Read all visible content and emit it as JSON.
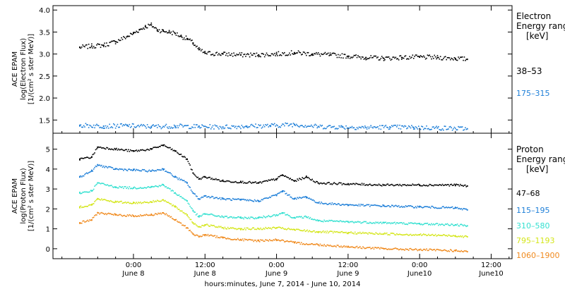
{
  "chart_data": [
    {
      "type": "scatter",
      "panel": "electron",
      "ylabel_lines": [
        "ACE EPAM",
        "log(Electron Flux)",
        "[1/(cm² s ster MeV)]"
      ],
      "ylim": [
        1.2,
        4.1
      ],
      "yticks": [
        "1.5",
        "2.0",
        "2.5",
        "3.0",
        "3.5",
        "4.0"
      ],
      "legend": {
        "title": [
          "Electron",
          "Energy ranges"
        ],
        "unit": "[keV]",
        "placement": "right",
        "entries": [
          "38–53",
          "175–315"
        ]
      },
      "series": [
        {
          "name": "38–53",
          "color": "#000000",
          "points": [
            [
              -9,
              3.15
            ],
            [
              -7,
              3.18
            ],
            [
              -5,
              3.2
            ],
            [
              -3,
              3.28
            ],
            [
              -1,
              3.4
            ],
            [
              0,
              3.47
            ],
            [
              1,
              3.55
            ],
            [
              2,
              3.62
            ],
            [
              3,
              3.66
            ],
            [
              4,
              3.55
            ],
            [
              5,
              3.52
            ],
            [
              6,
              3.5
            ],
            [
              7,
              3.47
            ],
            [
              8,
              3.4
            ],
            [
              9,
              3.35
            ],
            [
              10,
              3.25
            ],
            [
              11,
              3.1
            ],
            [
              12,
              3.02
            ],
            [
              15,
              3.0
            ],
            [
              18,
              2.98
            ],
            [
              21,
              2.98
            ],
            [
              24,
              3.0
            ],
            [
              27,
              3.03
            ],
            [
              30,
              3.0
            ],
            [
              33,
              2.98
            ],
            [
              36,
              2.95
            ],
            [
              39,
              2.92
            ],
            [
              42,
              2.9
            ],
            [
              45,
              2.92
            ],
            [
              48,
              2.93
            ],
            [
              51,
              2.92
            ],
            [
              54,
              2.9
            ],
            [
              56,
              2.88
            ]
          ]
        },
        {
          "name": "175–315",
          "color": "#1e7fd8",
          "points": [
            [
              -9,
              1.38
            ],
            [
              -5,
              1.36
            ],
            [
              -1,
              1.37
            ],
            [
              3,
              1.35
            ],
            [
              7,
              1.36
            ],
            [
              11,
              1.35
            ],
            [
              15,
              1.34
            ],
            [
              19,
              1.36
            ],
            [
              23,
              1.37
            ],
            [
              27,
              1.4
            ],
            [
              31,
              1.35
            ],
            [
              35,
              1.34
            ],
            [
              39,
              1.33
            ],
            [
              43,
              1.34
            ],
            [
              47,
              1.33
            ],
            [
              51,
              1.32
            ],
            [
              56,
              1.3
            ]
          ]
        }
      ]
    },
    {
      "type": "scatter",
      "panel": "proton",
      "ylabel_lines": [
        "ACE EPAM",
        "log(Proton Flux)",
        "[1/(cm² s ster MeV)]"
      ],
      "ylim": [
        -0.5,
        5.8
      ],
      "yticks": [
        "0",
        "1",
        "2",
        "3",
        "4",
        "5"
      ],
      "legend": {
        "title": [
          "Proton",
          "Energy ranges"
        ],
        "unit": "[keV]",
        "placement": "right",
        "entries": [
          "47–68",
          "115–195",
          "310–580",
          "795–1193",
          "1060–1900"
        ]
      },
      "series": [
        {
          "name": "47–68",
          "color": "#000000",
          "points": [
            [
              -9,
              4.5
            ],
            [
              -7,
              4.6
            ],
            [
              -6,
              5.1
            ],
            [
              -3,
              5.0
            ],
            [
              0,
              4.9
            ],
            [
              3,
              5.0
            ],
            [
              5,
              5.2
            ],
            [
              7,
              4.9
            ],
            [
              9,
              4.5
            ],
            [
              10,
              3.8
            ],
            [
              11,
              3.5
            ],
            [
              12,
              3.6
            ],
            [
              15,
              3.4
            ],
            [
              18,
              3.35
            ],
            [
              21,
              3.3
            ],
            [
              24,
              3.5
            ],
            [
              25,
              3.7
            ],
            [
              27,
              3.4
            ],
            [
              29,
              3.6
            ],
            [
              31,
              3.3
            ],
            [
              36,
              3.25
            ],
            [
              42,
              3.2
            ],
            [
              48,
              3.2
            ],
            [
              54,
              3.2
            ],
            [
              56,
              3.15
            ]
          ]
        },
        {
          "name": "115–195",
          "color": "#1e7fd8",
          "points": [
            [
              -9,
              3.6
            ],
            [
              -7,
              3.9
            ],
            [
              -6,
              4.2
            ],
            [
              -3,
              4.0
            ],
            [
              0,
              3.95
            ],
            [
              3,
              3.9
            ],
            [
              5,
              4.0
            ],
            [
              7,
              3.6
            ],
            [
              9,
              3.3
            ],
            [
              10,
              2.8
            ],
            [
              11,
              2.5
            ],
            [
              12,
              2.65
            ],
            [
              15,
              2.5
            ],
            [
              18,
              2.45
            ],
            [
              21,
              2.4
            ],
            [
              24,
              2.7
            ],
            [
              25,
              2.9
            ],
            [
              27,
              2.5
            ],
            [
              29,
              2.6
            ],
            [
              31,
              2.3
            ],
            [
              36,
              2.2
            ],
            [
              42,
              2.15
            ],
            [
              48,
              2.1
            ],
            [
              54,
              2.05
            ],
            [
              56,
              1.95
            ]
          ]
        },
        {
          "name": "310–580",
          "color": "#33e0d0",
          "points": [
            [
              -9,
              2.8
            ],
            [
              -7,
              2.9
            ],
            [
              -6,
              3.3
            ],
            [
              -3,
              3.1
            ],
            [
              0,
              3.05
            ],
            [
              3,
              3.1
            ],
            [
              5,
              3.2
            ],
            [
              7,
              2.8
            ],
            [
              9,
              2.4
            ],
            [
              10,
              1.9
            ],
            [
              11,
              1.6
            ],
            [
              12,
              1.75
            ],
            [
              15,
              1.6
            ],
            [
              18,
              1.55
            ],
            [
              21,
              1.55
            ],
            [
              24,
              1.7
            ],
            [
              25,
              1.8
            ],
            [
              27,
              1.55
            ],
            [
              29,
              1.6
            ],
            [
              31,
              1.4
            ],
            [
              36,
              1.35
            ],
            [
              42,
              1.3
            ],
            [
              48,
              1.25
            ],
            [
              54,
              1.2
            ],
            [
              56,
              1.15
            ]
          ]
        },
        {
          "name": "795–1193",
          "color": "#d4e61a",
          "points": [
            [
              -9,
              2.1
            ],
            [
              -7,
              2.2
            ],
            [
              -6,
              2.5
            ],
            [
              -3,
              2.35
            ],
            [
              0,
              2.3
            ],
            [
              3,
              2.35
            ],
            [
              5,
              2.45
            ],
            [
              7,
              2.1
            ],
            [
              9,
              1.7
            ],
            [
              10,
              1.3
            ],
            [
              11,
              1.1
            ],
            [
              12,
              1.2
            ],
            [
              15,
              1.05
            ],
            [
              18,
              1.0
            ],
            [
              21,
              1.0
            ],
            [
              24,
              1.05
            ],
            [
              27,
              0.95
            ],
            [
              31,
              0.85
            ],
            [
              36,
              0.8
            ],
            [
              42,
              0.75
            ],
            [
              48,
              0.7
            ],
            [
              54,
              0.65
            ],
            [
              56,
              0.6
            ]
          ]
        },
        {
          "name": "1060–1900",
          "color": "#f08a1e",
          "points": [
            [
              -9,
              1.3
            ],
            [
              -7,
              1.45
            ],
            [
              -6,
              1.8
            ],
            [
              -3,
              1.7
            ],
            [
              0,
              1.65
            ],
            [
              3,
              1.7
            ],
            [
              5,
              1.8
            ],
            [
              7,
              1.45
            ],
            [
              9,
              1.05
            ],
            [
              10,
              0.75
            ],
            [
              11,
              0.6
            ],
            [
              12,
              0.7
            ],
            [
              15,
              0.55
            ],
            [
              18,
              0.45
            ],
            [
              21,
              0.4
            ],
            [
              24,
              0.45
            ],
            [
              27,
              0.3
            ],
            [
              31,
              0.2
            ],
            [
              36,
              0.1
            ],
            [
              42,
              0.0
            ],
            [
              48,
              -0.05
            ],
            [
              54,
              -0.1
            ],
            [
              56,
              -0.15
            ]
          ]
        }
      ]
    }
  ],
  "x_axis": {
    "xlim_hours": [
      -13.5,
      63.5
    ],
    "tick_labels": [
      "0:00",
      "12:00",
      "0:00",
      "12:00",
      "0:00",
      "12:00"
    ],
    "tick_hours": [
      0,
      12,
      24,
      36,
      48,
      60
    ],
    "date_labels": [
      "June 8",
      "June 8",
      "June 9",
      "June 9",
      "June10",
      "June10"
    ],
    "xlabel": "hours:minutes, June  7, 2014 - June 10, 2014"
  }
}
